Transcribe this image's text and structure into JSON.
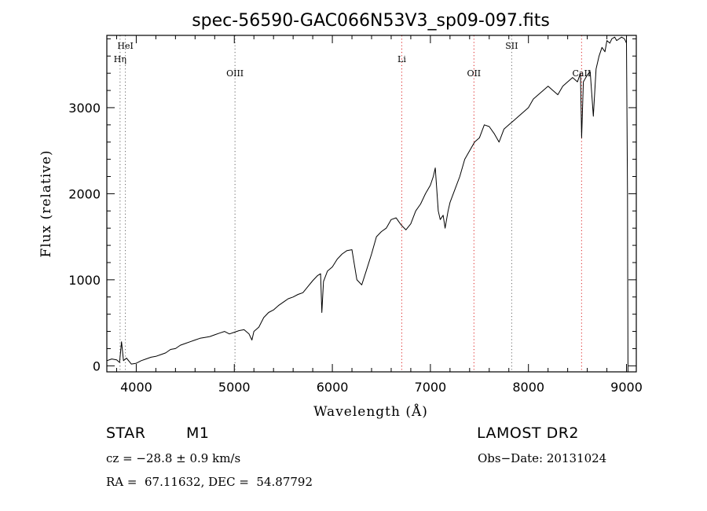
{
  "chart_data": {
    "type": "line",
    "title": "spec-56590-GAC066N53V3_sp09-097.fits",
    "xlabel": "Wavelength (Å)",
    "ylabel": "Flux (relative)",
    "xlim": [
      3700,
      9100
    ],
    "ylim": [
      -70,
      3840
    ],
    "x_ticks": [
      4000,
      5000,
      6000,
      7000,
      8000,
      9000
    ],
    "y_ticks": [
      0,
      1000,
      2000,
      3000
    ],
    "grid": false,
    "series": [
      {
        "color": "#000000",
        "x": [
          3700,
          3750,
          3800,
          3830,
          3850,
          3870,
          3900,
          3950,
          4000,
          4050,
          4100,
          4150,
          4200,
          4250,
          4300,
          4350,
          4400,
          4450,
          4500,
          4550,
          4600,
          4650,
          4700,
          4750,
          4800,
          4850,
          4900,
          4950,
          5000,
          5050,
          5100,
          5150,
          5180,
          5200,
          5250,
          5300,
          5350,
          5400,
          5450,
          5500,
          5550,
          5600,
          5650,
          5700,
          5750,
          5800,
          5850,
          5880,
          5893,
          5910,
          5950,
          6000,
          6050,
          6100,
          6150,
          6200,
          6250,
          6300,
          6350,
          6400,
          6450,
          6500,
          6550,
          6600,
          6650,
          6700,
          6750,
          6800,
          6850,
          6900,
          6950,
          7000,
          7030,
          7050,
          7080,
          7100,
          7130,
          7150,
          7180,
          7200,
          7250,
          7300,
          7350,
          7400,
          7450,
          7500,
          7550,
          7600,
          7650,
          7700,
          7750,
          7800,
          7850,
          7900,
          7950,
          8000,
          8050,
          8100,
          8150,
          8200,
          8250,
          8300,
          8350,
          8400,
          8450,
          8500,
          8530,
          8542,
          8560,
          8600,
          8630,
          8662,
          8690,
          8720,
          8750,
          8780,
          8800,
          8830,
          8850,
          8880,
          8900,
          8950,
          8980,
          9000,
          9010,
          9015
        ],
        "y": [
          60,
          80,
          70,
          40,
          280,
          60,
          90,
          20,
          30,
          60,
          80,
          100,
          110,
          130,
          150,
          190,
          200,
          240,
          260,
          280,
          300,
          320,
          330,
          340,
          360,
          380,
          400,
          370,
          390,
          410,
          420,
          370,
          300,
          400,
          450,
          560,
          620,
          650,
          700,
          740,
          780,
          800,
          830,
          850,
          920,
          990,
          1050,
          1070,
          620,
          980,
          1100,
          1150,
          1240,
          1300,
          1340,
          1350,
          1000,
          940,
          1120,
          1300,
          1500,
          1560,
          1600,
          1700,
          1720,
          1640,
          1580,
          1650,
          1800,
          1880,
          2000,
          2100,
          2200,
          2300,
          1800,
          1700,
          1750,
          1600,
          1800,
          1900,
          2050,
          2200,
          2400,
          2500,
          2600,
          2650,
          2800,
          2780,
          2700,
          2600,
          2750,
          2800,
          2850,
          2900,
          2950,
          3000,
          3100,
          3150,
          3200,
          3250,
          3200,
          3150,
          3250,
          3300,
          3350,
          3300,
          3400,
          2650,
          3300,
          3380,
          3420,
          2900,
          3450,
          3600,
          3700,
          3650,
          3780,
          3750,
          3800,
          3820,
          3780,
          3820,
          3800,
          3750,
          2000,
          -70
        ]
      }
    ],
    "line_marks": [
      {
        "x": 3889,
        "label": "HeI",
        "color": "#666666",
        "row": 1
      },
      {
        "x": 3835,
        "label": "Hη",
        "color": "#666666",
        "row": 2
      },
      {
        "x": 5007,
        "label": "OIII",
        "color": "#666666",
        "row": 3
      },
      {
        "x": 6708,
        "label": "Li",
        "color": "#dd2222",
        "row": 2
      },
      {
        "x": 7444,
        "label": "OII",
        "color": "#dd2222",
        "row": 3
      },
      {
        "x": 7829,
        "label": "SII",
        "color": "#666666",
        "row": 1
      },
      {
        "x": 8542,
        "label": "CaII",
        "color": "#dd2222",
        "row": 3
      }
    ]
  },
  "info": {
    "object_class": "STAR",
    "subclass": "M1",
    "survey": "LAMOST DR2",
    "redshift": "cz = −28.8 ± 0.9 km/s",
    "obs_date": "Obs−Date: 20131024",
    "coords": "RA =  67.11632, DEC =  54.87792"
  }
}
